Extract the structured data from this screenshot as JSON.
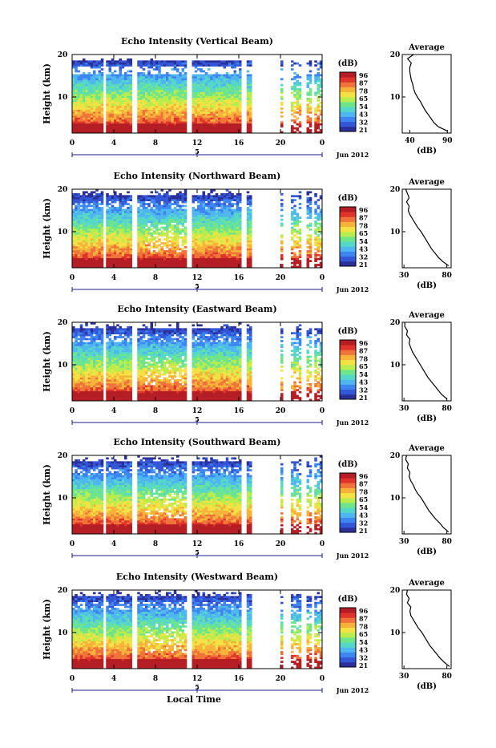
{
  "xaxis_title": "Local Time",
  "x_ticks": [
    "0",
    "4",
    "8",
    "12",
    "16",
    "20",
    "0"
  ],
  "date_tick": "5",
  "date_label": "Jun 2012",
  "ylabel": "Height (km)",
  "y_ticks": [
    "20",
    "10"
  ],
  "colorbar": {
    "unit": "(dB)",
    "colors": [
      "#2b2f9a",
      "#3357d6",
      "#3d86f2",
      "#4fb6f0",
      "#56d8c8",
      "#6ee58a",
      "#b9ed4e",
      "#f4e245",
      "#f7b23a",
      "#f0743a",
      "#e0342a",
      "#b51d24"
    ]
  },
  "avg_panel": {
    "title": "Average",
    "y_ticks": [
      "20",
      "10"
    ],
    "xlabel": "(dB)"
  },
  "chart_data": [
    {
      "type": "heatmap",
      "title": "Echo Intensity (Vertical Beam)",
      "colorbar_ticks": [
        "96",
        "87",
        "78",
        "65",
        "54",
        "43",
        "32",
        "21"
      ],
      "avg_xticks": [
        "40",
        "90"
      ],
      "avg_xrange": [
        30,
        95
      ],
      "avg_profile": {
        "height_km": [
          2,
          3,
          4,
          5,
          6,
          7,
          8,
          9,
          10,
          11,
          12,
          13,
          14,
          15,
          16,
          17,
          18,
          19,
          20
        ],
        "db": [
          90,
          78,
          72,
          68,
          64,
          60,
          57,
          54,
          50,
          47,
          45,
          44,
          42,
          41,
          40,
          40,
          42,
          37,
          45
        ]
      }
    },
    {
      "type": "heatmap",
      "title": "Echo Intensity (Northward Beam)",
      "colorbar_ticks": [
        "96",
        "87",
        "78",
        "65",
        "54",
        "43",
        "32",
        "21"
      ],
      "avg_xticks": [
        "30",
        "80"
      ],
      "avg_xrange": [
        28,
        85
      ],
      "avg_profile": {
        "height_km": [
          2,
          3,
          4,
          5,
          6,
          7,
          8,
          9,
          10,
          11,
          12,
          13,
          14,
          15,
          16,
          17,
          18,
          19,
          20
        ],
        "db": [
          82,
          75,
          70,
          66,
          62,
          59,
          56,
          53,
          50,
          46,
          43,
          40,
          37,
          35,
          36,
          33,
          36,
          34,
          32
        ]
      }
    },
    {
      "type": "heatmap",
      "title": "Echo Intensity (Eastward Beam)",
      "colorbar_ticks": [
        "96",
        "87",
        "78",
        "65",
        "54",
        "43",
        "32",
        "21"
      ],
      "avg_xticks": [
        "30",
        "80"
      ],
      "avg_xrange": [
        28,
        85
      ],
      "avg_profile": {
        "height_km": [
          2,
          3,
          4,
          5,
          6,
          7,
          8,
          9,
          10,
          11,
          12,
          13,
          14,
          15,
          16,
          17,
          18,
          19,
          20
        ],
        "db": [
          80,
          74,
          70,
          66,
          62,
          58,
          55,
          52,
          49,
          46,
          43,
          40,
          38,
          36,
          37,
          33,
          34,
          31,
          31
        ]
      }
    },
    {
      "type": "heatmap",
      "title": "Echo Intensity (Southward Beam)",
      "colorbar_ticks": [
        "96",
        "87",
        "78",
        "65",
        "54",
        "43",
        "32",
        "21"
      ],
      "avg_xticks": [
        "30",
        "80"
      ],
      "avg_xrange": [
        28,
        85
      ],
      "avg_profile": {
        "height_km": [
          2,
          3,
          4,
          5,
          6,
          7,
          8,
          9,
          10,
          11,
          12,
          13,
          14,
          15,
          16,
          17,
          18,
          19,
          20
        ],
        "db": [
          82,
          76,
          72,
          67,
          63,
          59,
          56,
          53,
          50,
          46,
          43,
          41,
          38,
          36,
          37,
          34,
          35,
          32,
          33
        ]
      }
    },
    {
      "type": "heatmap",
      "title": "Echo Intensity (Westward Beam)",
      "colorbar_ticks": [
        "96",
        "87",
        "78",
        "65",
        "54",
        "43",
        "32",
        "21"
      ],
      "avg_xticks": [
        "30",
        "80"
      ],
      "avg_xrange": [
        28,
        85
      ],
      "avg_profile": {
        "height_km": [
          2,
          3,
          4,
          5,
          6,
          7,
          8,
          9,
          10,
          11,
          12,
          13,
          14,
          15,
          16,
          17,
          18,
          19,
          20
        ],
        "db": [
          83,
          77,
          72,
          68,
          64,
          60,
          57,
          54,
          51,
          47,
          44,
          41,
          38,
          37,
          38,
          34,
          36,
          33,
          34
        ]
      }
    }
  ]
}
